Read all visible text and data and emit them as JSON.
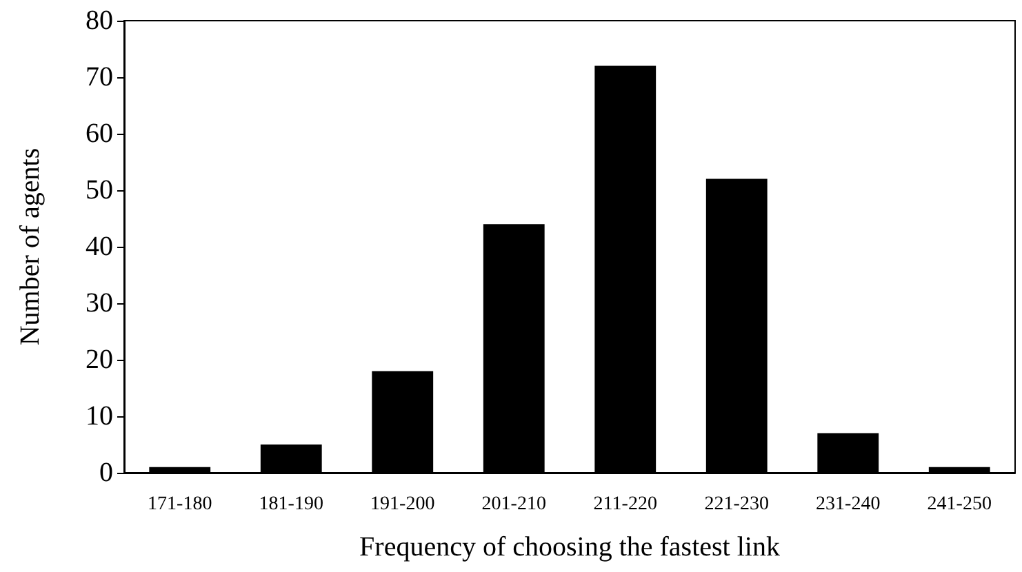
{
  "chart_data": {
    "type": "bar",
    "xlabel": "Frequency of choosing the fastest link",
    "ylabel": "Number of agents",
    "categories": [
      "171-180",
      "181-190",
      "191-200",
      "201-210",
      "211-220",
      "221-230",
      "231-240",
      "241-250"
    ],
    "values": [
      1,
      5,
      18,
      44,
      72,
      52,
      7,
      1
    ],
    "color": "#000000",
    "ylim": [
      0,
      80
    ],
    "yticks": [
      0,
      10,
      20,
      30,
      40,
      50,
      60,
      70,
      80
    ],
    "grid": false
  }
}
